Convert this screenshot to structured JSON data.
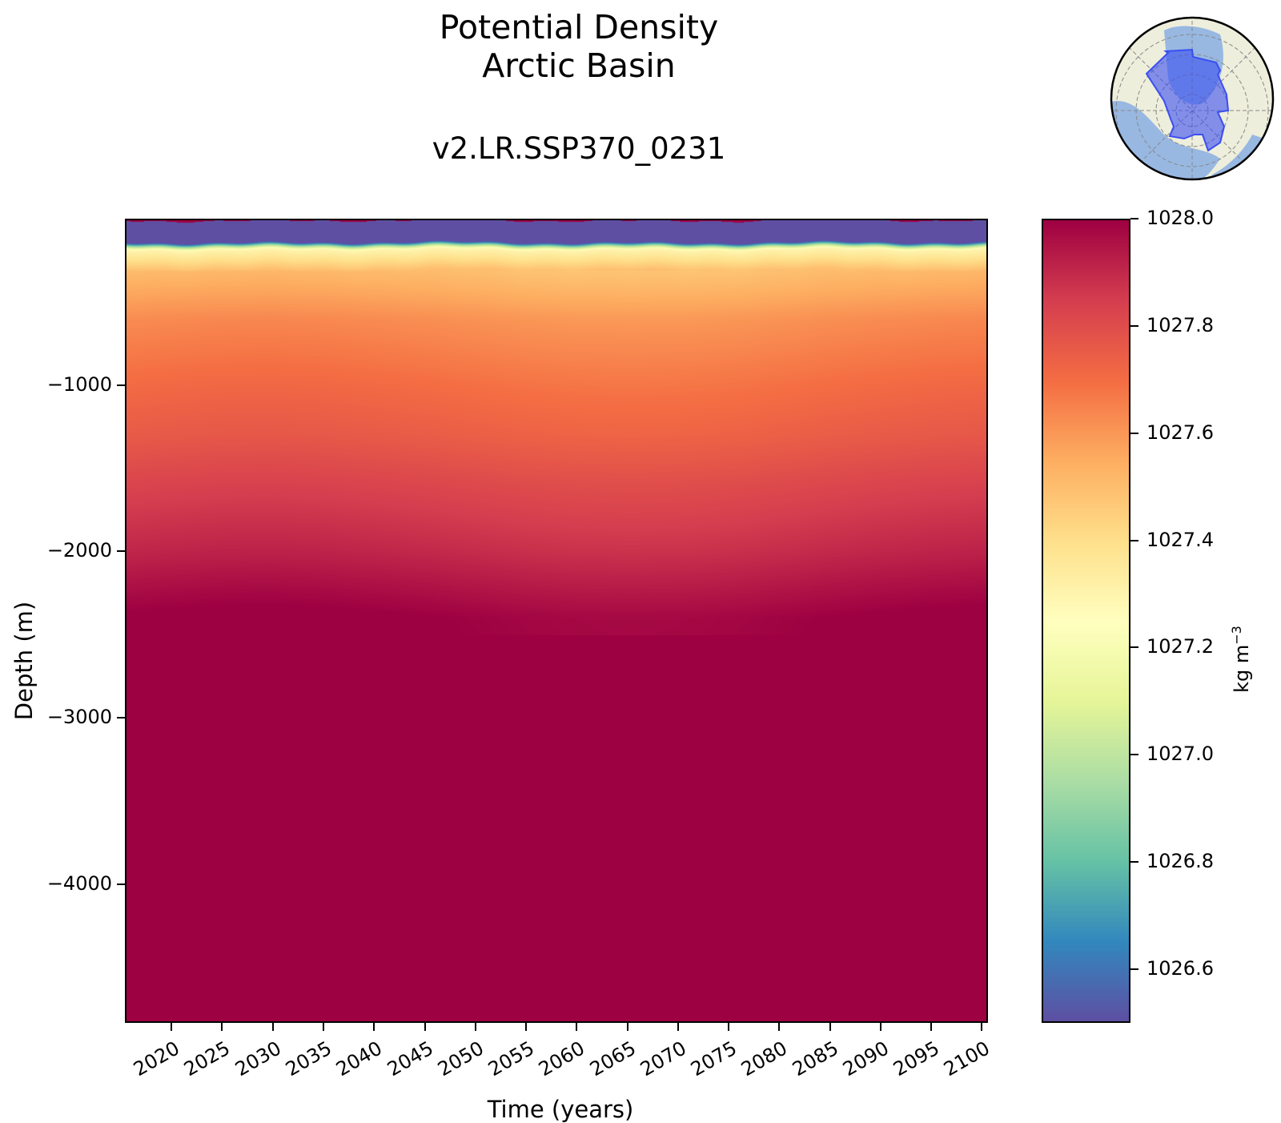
{
  "title_line1": "Potential Density",
  "title_line2": "Arctic Basin",
  "subtitle": "v2.LR.SSP370_0231",
  "colorbar_label": "kg m",
  "colorbar_label_exp": "−3",
  "chart_data": {
    "type": "heatmap",
    "title": "Potential Density\nArctic Basin",
    "subtitle": "v2.LR.SSP370_0231",
    "xlabel": "Time (years)",
    "ylabel": "Depth (m)",
    "xlim": [
      2015.4,
      2100.6
    ],
    "ylim": [
      -4835,
      0
    ],
    "xticks": [
      2020,
      2025,
      2030,
      2035,
      2040,
      2045,
      2050,
      2055,
      2060,
      2065,
      2070,
      2075,
      2080,
      2085,
      2090,
      2095,
      2100
    ],
    "yticks": [
      -1000,
      -2000,
      -3000,
      -4000
    ],
    "colormap": "Spectral_r",
    "colorbar": {
      "label": "kg m^-3",
      "range": [
        1026.5,
        1028.0
      ],
      "ticks": [
        1026.6,
        1026.8,
        1027.0,
        1027.2,
        1027.4,
        1027.6,
        1027.8,
        1028.0
      ]
    },
    "density_profile": {
      "depth": [
        0,
        -130,
        -150,
        -175,
        -300,
        -600,
        -1000,
        -1300,
        -1600,
        -2000,
        -2400,
        -4835
      ],
      "density": [
        1026.4,
        1026.45,
        1026.9,
        1027.3,
        1027.5,
        1027.62,
        1027.7,
        1027.75,
        1027.82,
        1027.9,
        1028.0,
        1028.05
      ]
    },
    "inset_map": {
      "projection": "north-polar-stereographic",
      "region": "Arctic Basin",
      "region_color": "#3b4ef0"
    }
  }
}
